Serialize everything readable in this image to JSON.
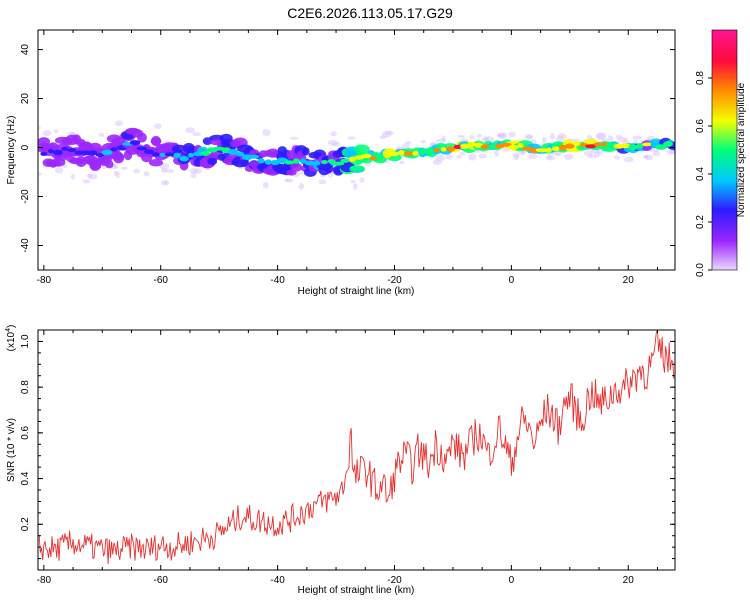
{
  "title": "C2E6.2026.113.05.17.G29",
  "chart_data": [
    {
      "type": "heatmap",
      "xlabel": "Height of straight line (km)",
      "ylabel": "Frequency (Hz)",
      "xlim": [
        -81,
        28
      ],
      "ylim": [
        -50,
        48
      ],
      "x_ticks": [
        -80,
        -60,
        -40,
        -20,
        0,
        20
      ],
      "x_tick_labels": [
        "-80",
        "-60",
        "-40",
        "-20",
        "0",
        "20"
      ],
      "y_ticks": [
        -40,
        -20,
        0,
        20,
        40
      ],
      "y_tick_labels": [
        "-40",
        "-20",
        "0",
        "20",
        "40"
      ],
      "colorbar": {
        "label": "Normalized spectral amplitude",
        "range": [
          0,
          1
        ],
        "ticks": [
          0,
          0.2,
          0.4,
          0.6,
          0.8
        ],
        "tick_labels": [
          "0.0",
          "0.2",
          "0.4",
          "0.6",
          "0.8"
        ],
        "colors": [
          "#ebd6ff",
          "#9c27ff",
          "#2e1bff",
          "#00c8ff",
          "#00ff7a",
          "#f5ff00",
          "#ff8a00",
          "#ff0a3c",
          "#ff1493"
        ]
      },
      "ridge": {
        "x": [
          -80,
          -75,
          -70,
          -65,
          -60,
          -55,
          -50,
          -45,
          -40,
          -35,
          -30,
          -25,
          -20,
          -15,
          -10,
          -5,
          0,
          5,
          10,
          15,
          20,
          25,
          28
        ],
        "freq": [
          -2,
          -1,
          -3,
          2,
          -3,
          -4,
          0,
          -4,
          -6,
          -6,
          -6,
          -4,
          -3,
          -2,
          0,
          1,
          1,
          -1,
          1,
          1,
          0,
          1,
          1
        ],
        "amplitude": [
          0.3,
          0.35,
          0.3,
          0.4,
          0.3,
          0.45,
          0.5,
          0.45,
          0.45,
          0.5,
          0.55,
          0.75,
          0.8,
          0.7,
          0.85,
          0.75,
          0.8,
          0.7,
          0.85,
          0.8,
          0.6,
          0.55,
          0.5
        ]
      }
    },
    {
      "type": "line",
      "xlabel": "Height of straight line (km)",
      "ylabel": "SNR (10 * v/v)",
      "y_multiplier": "(x10",
      "y_multiplier_exp": "4",
      "xlim": [
        -81,
        28
      ],
      "ylim": [
        0,
        1.05
      ],
      "x_ticks": [
        -80,
        -60,
        -40,
        -20,
        0,
        20
      ],
      "x_tick_labels": [
        "-80",
        "-60",
        "-40",
        "-20",
        "0",
        "20"
      ],
      "y_ticks": [
        0.2,
        0.4,
        0.6,
        0.8,
        1.0
      ],
      "y_tick_labels": [
        "0.2",
        "0.4",
        "0.6",
        "0.8",
        "1.0"
      ],
      "series": [
        {
          "color": "#e8302f",
          "x": [
            -81,
            -78,
            -75,
            -72,
            -70,
            -68,
            -65,
            -62,
            -60,
            -58,
            -55,
            -52,
            -50,
            -48,
            -46,
            -44,
            -42,
            -40,
            -38,
            -36,
            -34,
            -32,
            -30,
            -29,
            -28,
            -27.5,
            -27,
            -26,
            -25,
            -24,
            -23,
            -22,
            -21,
            -20,
            -19,
            -18,
            -17,
            -16,
            -15,
            -14,
            -13,
            -12,
            -11,
            -10,
            -9,
            -8,
            -7,
            -6,
            -5,
            -4,
            -3,
            -2,
            -1,
            0,
            1,
            2,
            3,
            4,
            5,
            6,
            7,
            8,
            9,
            10,
            11,
            12,
            13,
            14,
            15,
            16,
            17,
            18,
            19,
            20,
            21,
            22,
            23,
            24,
            25,
            26,
            27,
            28
          ],
          "y": [
            0.1,
            0.09,
            0.12,
            0.1,
            0.09,
            0.08,
            0.1,
            0.09,
            0.11,
            0.1,
            0.12,
            0.14,
            0.16,
            0.2,
            0.24,
            0.22,
            0.21,
            0.2,
            0.22,
            0.25,
            0.28,
            0.3,
            0.32,
            0.35,
            0.45,
            0.62,
            0.4,
            0.42,
            0.45,
            0.4,
            0.35,
            0.38,
            0.3,
            0.42,
            0.48,
            0.5,
            0.45,
            0.52,
            0.5,
            0.46,
            0.55,
            0.52,
            0.48,
            0.56,
            0.52,
            0.5,
            0.55,
            0.6,
            0.58,
            0.5,
            0.56,
            0.62,
            0.54,
            0.46,
            0.58,
            0.66,
            0.62,
            0.55,
            0.64,
            0.7,
            0.68,
            0.62,
            0.72,
            0.76,
            0.7,
            0.64,
            0.74,
            0.78,
            0.72,
            0.74,
            0.76,
            0.8,
            0.78,
            0.82,
            0.84,
            0.88,
            0.86,
            0.9,
            0.98,
            0.94,
            0.92,
            0.91
          ]
        }
      ]
    }
  ]
}
